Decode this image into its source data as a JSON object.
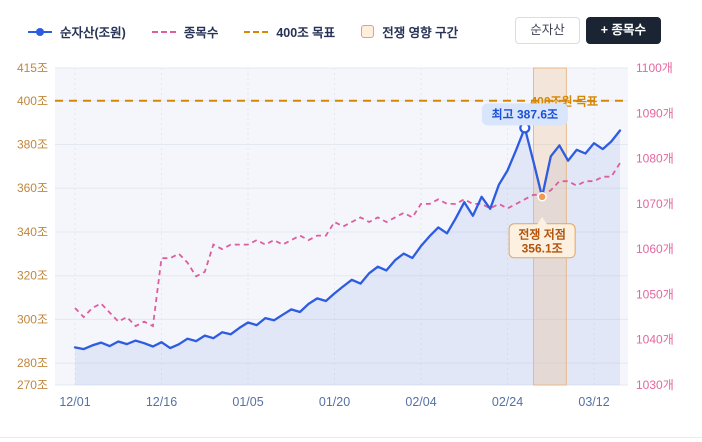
{
  "legend": {
    "items": [
      {
        "label": "순자산(조원)",
        "type": "line",
        "color": "#2e5ce0"
      },
      {
        "label": "종목수",
        "type": "dashed",
        "color": "#db5f9d"
      },
      {
        "label": "400조 목표",
        "type": "dashed",
        "color": "#d48806"
      },
      {
        "label": "전쟁 영향 구간",
        "type": "band",
        "color": "#e8a45a",
        "fill": "#fdeedd"
      }
    ]
  },
  "toolbar": {
    "buttons": [
      {
        "label": "순자산",
        "active": false
      },
      {
        "label": "+ 종목수",
        "active": true
      }
    ]
  },
  "chart_data": {
    "type": "line",
    "title": "",
    "x_tick_indices": [
      0,
      10,
      20,
      30,
      40,
      50,
      60
    ],
    "x_tick_labels": [
      "12/01",
      "12/16",
      "01/05",
      "01/20",
      "02/04",
      "02/24",
      "03/12"
    ],
    "left_axis": {
      "name": "순자산(조원)",
      "unit": "조",
      "min": 270,
      "max": 415,
      "ticks": [
        415,
        400,
        380,
        360,
        340,
        320,
        300,
        280,
        270
      ],
      "tick_labels": [
        "415조",
        "400조",
        "380조",
        "360조",
        "340조",
        "320조",
        "300조",
        "280조",
        "270조"
      ],
      "color": "#c0873d"
    },
    "right_axis": {
      "name": "종목수",
      "unit": "개",
      "min": 1030,
      "max": 1100,
      "ticks": [
        1100,
        1090,
        1080,
        1070,
        1060,
        1050,
        1040,
        1030
      ],
      "tick_labels": [
        "1100개",
        "1090개",
        "1080개",
        "1070개",
        "1060개",
        "1050개",
        "1040개",
        "1030개"
      ],
      "color": "#e4679f"
    },
    "series": [
      {
        "name": "순자산(조원)",
        "axis": "left",
        "color": "#2e5ce0",
        "style": "solid",
        "values": [
          287.2,
          286.4,
          288.1,
          289.4,
          287.8,
          289.9,
          288.7,
          290.3,
          289.1,
          287.6,
          289.6,
          286.9,
          288.6,
          291.2,
          290.1,
          292.6,
          291.4,
          294.1,
          293.2,
          296.1,
          298.6,
          297.4,
          300.6,
          299.6,
          302.1,
          304.6,
          303.4,
          307.1,
          309.6,
          308.4,
          311.9,
          315.1,
          318.1,
          316.4,
          321.1,
          324.1,
          322.4,
          327.1,
          330.1,
          328.1,
          333.6,
          338.1,
          342.1,
          339.4,
          346.1,
          353.6,
          347.4,
          356.1,
          350.6,
          361.6,
          368.1,
          377.6,
          387.6,
          372.1,
          356.1,
          374.6,
          379.6,
          372.6,
          377.6,
          375.9,
          380.6,
          377.9,
          381.4,
          386.4
        ]
      },
      {
        "name": "종목수",
        "axis": "right",
        "color": "#db5f9d",
        "style": "dashed",
        "values": [
          1047,
          1045,
          1047,
          1048,
          1046,
          1044,
          1045,
          1043,
          1044,
          1043,
          1058,
          1058,
          1059,
          1057,
          1054,
          1055,
          1061,
          1060,
          1061,
          1061,
          1061,
          1062,
          1061,
          1062,
          1061,
          1062,
          1063,
          1062,
          1063,
          1063,
          1066,
          1065,
          1066,
          1067,
          1066,
          1067,
          1066,
          1067,
          1068,
          1067,
          1070,
          1070,
          1071,
          1070,
          1070,
          1071,
          1070,
          1070,
          1069,
          1070,
          1069,
          1070,
          1071,
          1072,
          1072,
          1073,
          1075,
          1075,
          1074,
          1075,
          1075,
          1076,
          1076,
          1079
        ]
      }
    ],
    "target_line": {
      "value": 400,
      "label": "400조원 목표",
      "color": "#d48806"
    },
    "band": {
      "label": "전쟁 영향 구간",
      "from_index": 53,
      "to_index": 56.8,
      "fill": "#f0a860",
      "opacity": 0.22,
      "edge_color": "#e9b98a"
    },
    "annotations": [
      {
        "type": "peak",
        "index": 52,
        "value": 387.6,
        "label": "최고 387.6조",
        "bg": "#d8e5fb",
        "text_color": "#1d4fd8"
      },
      {
        "type": "trough",
        "index": 54,
        "value": 356.1,
        "label": "전쟁 저점",
        "label2": "356.1조",
        "bg": "#fcf0e1",
        "border": "#e3a561",
        "text_color": "#b45309",
        "marker_color": "#f09a4e"
      }
    ],
    "grid": true,
    "legend_position": "top",
    "plot_bg": "#f4f6fb",
    "grid_color": "#e3e8f1",
    "x_label_color": "#5572a3"
  }
}
